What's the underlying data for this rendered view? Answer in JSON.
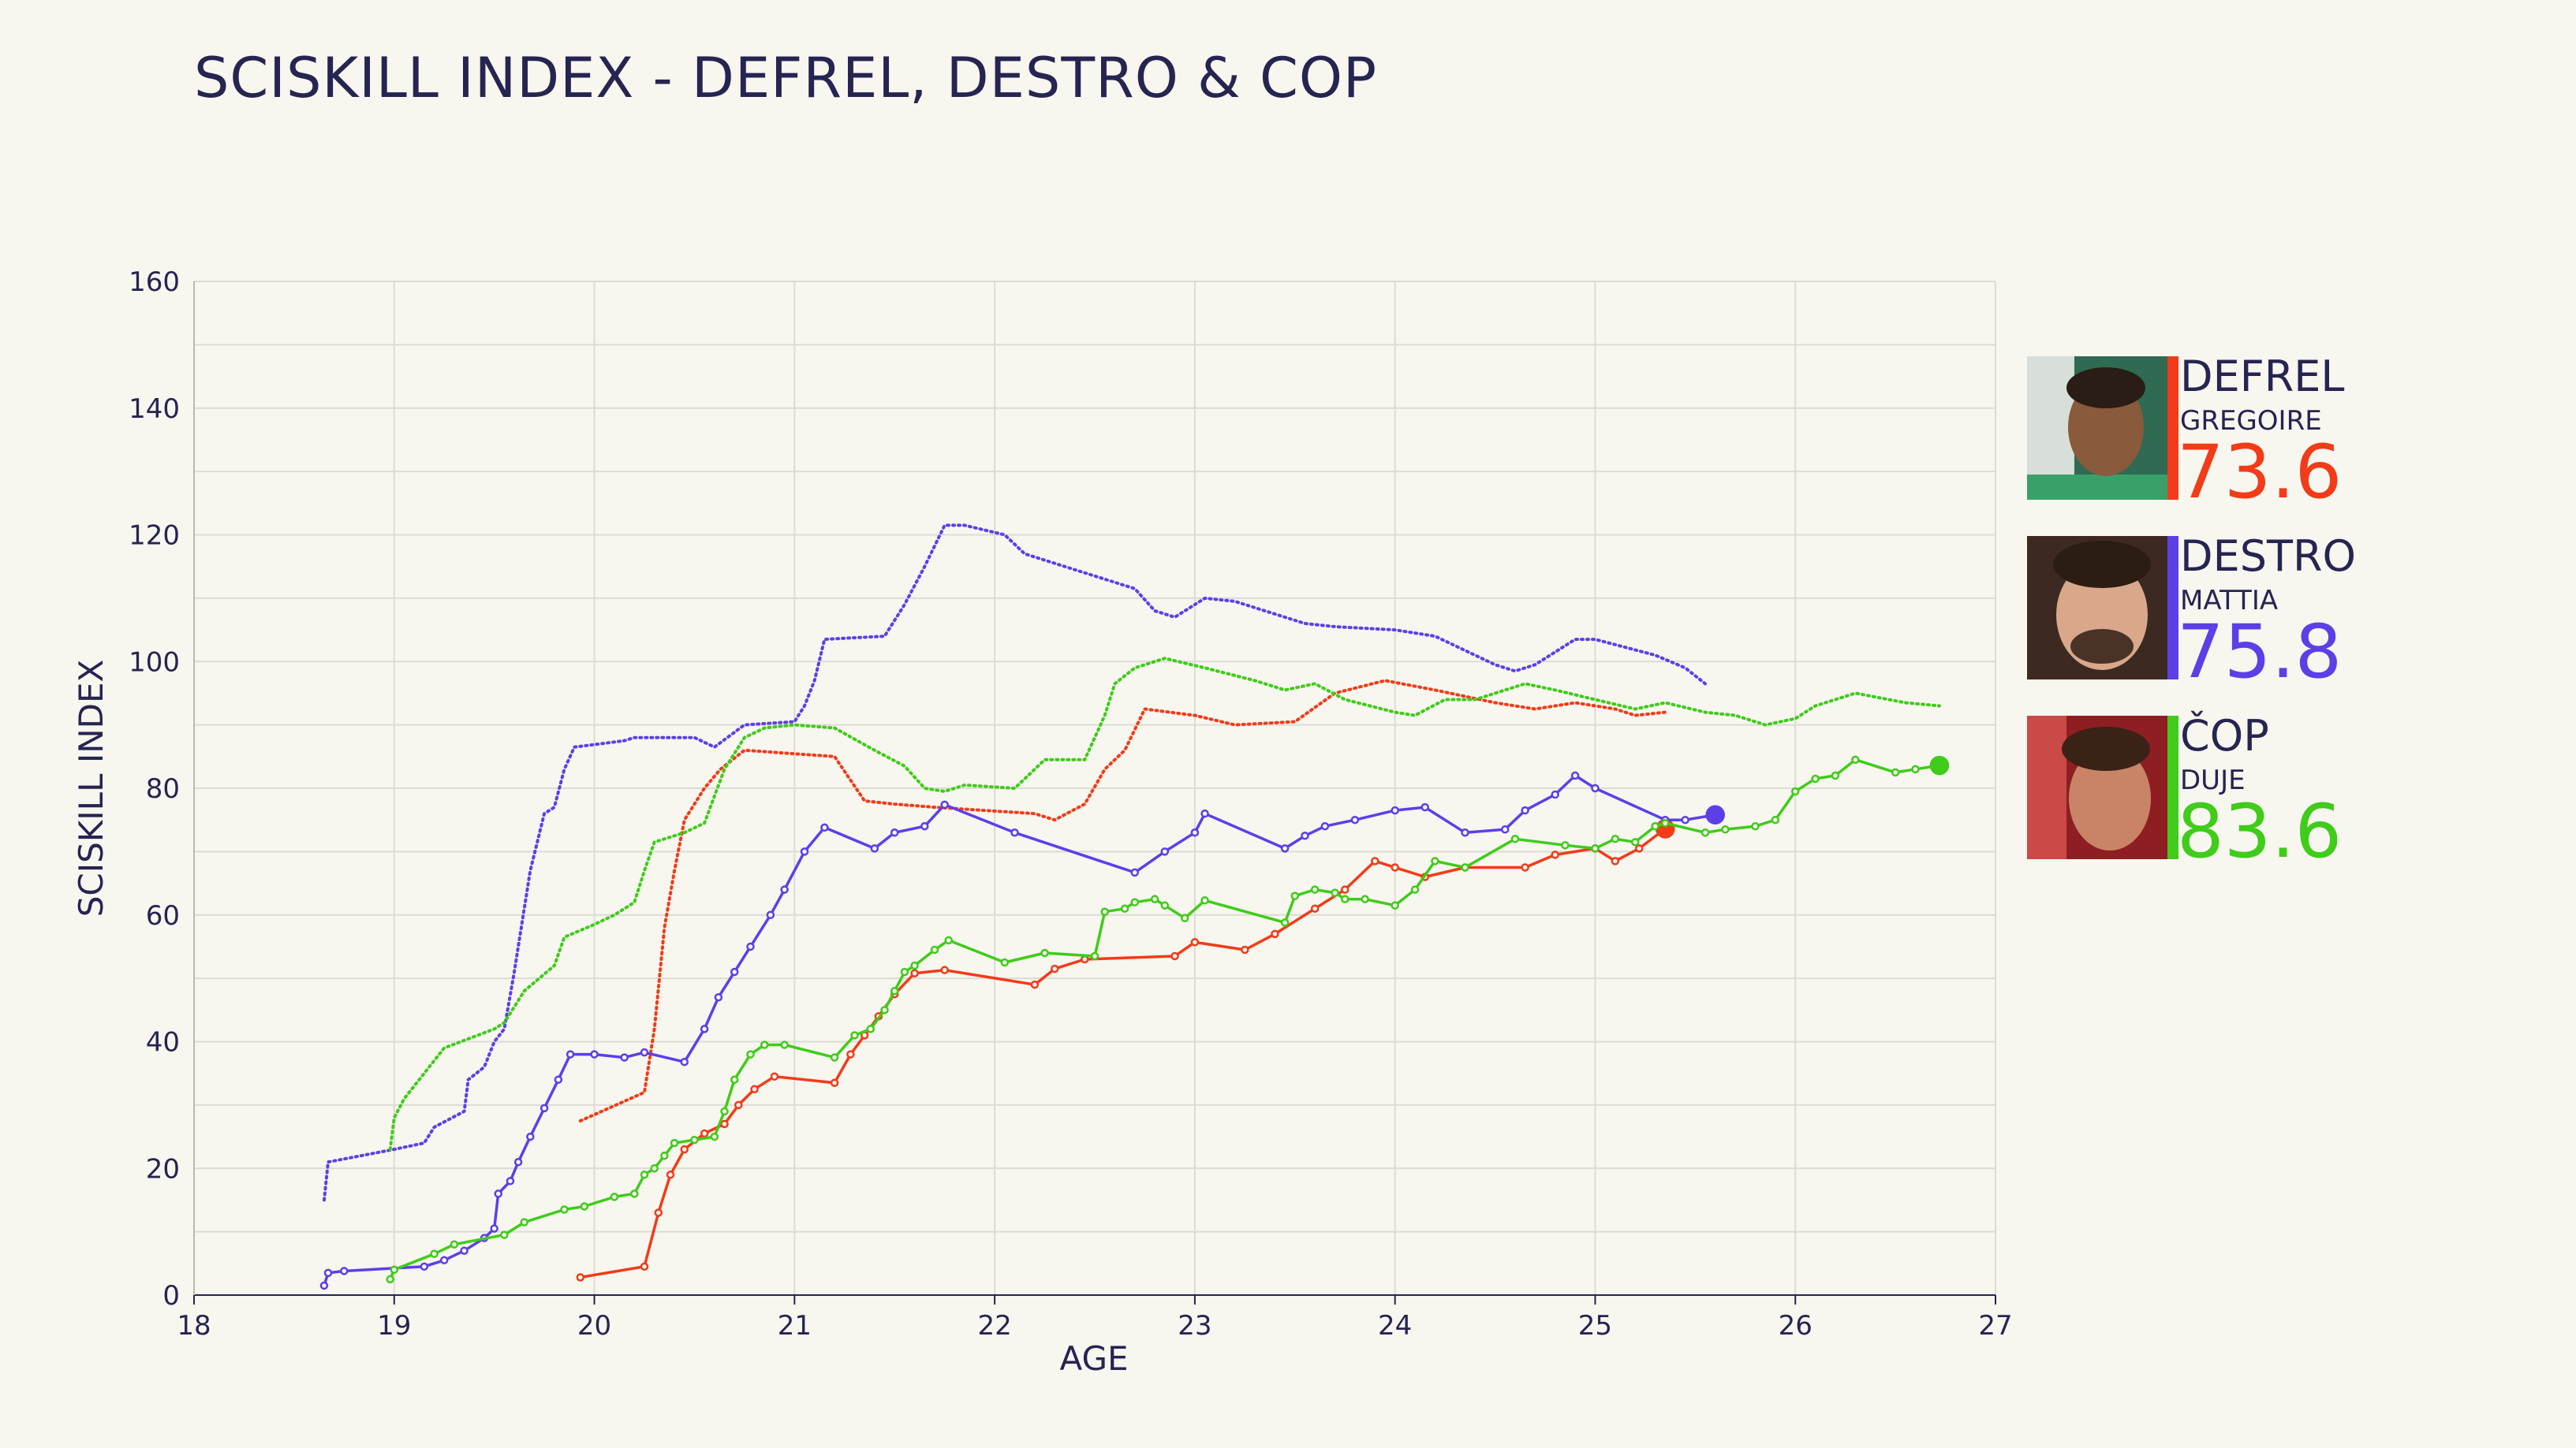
{
  "title": "SCISKILL INDEX - DEFREL, DESTRO & COP",
  "chart_data": {
    "type": "line",
    "title": "SCISKILL INDEX - DEFREL, DESTRO & COP",
    "xlabel": "AGE",
    "ylabel": "SCISKILL INDEX",
    "xlim": [
      18,
      27
    ],
    "ylim": [
      0,
      160
    ],
    "xticks": [
      18,
      19,
      20,
      21,
      22,
      23,
      24,
      25,
      26,
      27
    ],
    "yticks": [
      0,
      20,
      40,
      60,
      80,
      100,
      120,
      140,
      160
    ],
    "grid": true,
    "legend": "right",
    "series": [
      {
        "key": "defrel",
        "color": "#f23b18",
        "style": "solid",
        "points": [
          [
            19.93,
            2.8
          ],
          [
            20.25,
            4.5
          ],
          [
            20.32,
            13
          ],
          [
            20.38,
            19
          ],
          [
            20.45,
            23
          ],
          [
            20.55,
            25.5
          ],
          [
            20.65,
            27
          ],
          [
            20.72,
            30
          ],
          [
            20.8,
            32.5
          ],
          [
            20.9,
            34.5
          ],
          [
            21.2,
            33.5
          ],
          [
            21.28,
            38
          ],
          [
            21.35,
            41
          ],
          [
            21.42,
            44
          ],
          [
            21.5,
            47.5
          ],
          [
            21.6,
            50.8
          ],
          [
            21.75,
            51.3
          ],
          [
            22.2,
            49
          ],
          [
            22.3,
            51.5
          ],
          [
            22.45,
            53
          ],
          [
            22.9,
            53.5
          ],
          [
            23.0,
            55.7
          ],
          [
            23.25,
            54.5
          ],
          [
            23.4,
            57
          ],
          [
            23.6,
            61
          ],
          [
            23.75,
            64
          ],
          [
            23.9,
            68.5
          ],
          [
            24.0,
            67.5
          ],
          [
            24.15,
            66
          ],
          [
            24.35,
            67.5
          ],
          [
            24.65,
            67.5
          ],
          [
            24.8,
            69.5
          ],
          [
            25.0,
            70.5
          ],
          [
            25.1,
            68.5
          ],
          [
            25.22,
            70.5
          ],
          [
            25.35,
            73.6
          ]
        ]
      },
      {
        "key": "defrel_dotted",
        "color": "#f23b18",
        "style": "dotted",
        "points": [
          [
            19.93,
            27.5
          ],
          [
            20.25,
            32
          ],
          [
            20.3,
            42
          ],
          [
            20.35,
            58
          ],
          [
            20.4,
            67
          ],
          [
            20.45,
            75
          ],
          [
            20.55,
            80
          ],
          [
            20.63,
            83
          ],
          [
            20.75,
            86
          ],
          [
            21.2,
            85
          ],
          [
            21.35,
            78
          ],
          [
            21.5,
            77.5
          ],
          [
            21.7,
            77
          ],
          [
            22.2,
            76
          ],
          [
            22.3,
            75
          ],
          [
            22.45,
            77.5
          ],
          [
            22.55,
            83
          ],
          [
            22.65,
            86
          ],
          [
            22.75,
            92.5
          ],
          [
            23.0,
            91.5
          ],
          [
            23.2,
            90
          ],
          [
            23.5,
            90.5
          ],
          [
            23.7,
            95
          ],
          [
            23.95,
            97
          ],
          [
            24.2,
            95.5
          ],
          [
            24.5,
            93.5
          ],
          [
            24.7,
            92.5
          ],
          [
            24.9,
            93.5
          ],
          [
            25.1,
            92.5
          ],
          [
            25.2,
            91.5
          ],
          [
            25.35,
            92
          ]
        ]
      },
      {
        "key": "destro",
        "color": "#5d3fe8",
        "style": "solid",
        "points": [
          [
            18.65,
            1.5
          ],
          [
            18.67,
            3.5
          ],
          [
            18.75,
            3.8
          ],
          [
            19.15,
            4.5
          ],
          [
            19.25,
            5.5
          ],
          [
            19.35,
            7
          ],
          [
            19.45,
            9
          ],
          [
            19.5,
            10.5
          ],
          [
            19.52,
            16
          ],
          [
            19.58,
            18
          ],
          [
            19.62,
            21
          ],
          [
            19.68,
            25
          ],
          [
            19.75,
            29.5
          ],
          [
            19.82,
            34
          ],
          [
            19.88,
            38
          ],
          [
            20.0,
            38
          ],
          [
            20.15,
            37.5
          ],
          [
            20.25,
            38.3
          ],
          [
            20.45,
            36.8
          ],
          [
            20.55,
            42
          ],
          [
            20.62,
            47
          ],
          [
            20.7,
            51
          ],
          [
            20.78,
            55
          ],
          [
            20.88,
            60
          ],
          [
            20.95,
            64
          ],
          [
            21.05,
            70
          ],
          [
            21.15,
            73.8
          ],
          [
            21.4,
            70.5
          ],
          [
            21.5,
            73
          ],
          [
            21.65,
            74
          ],
          [
            21.75,
            77.4
          ],
          [
            22.1,
            73
          ],
          [
            22.7,
            66.7
          ],
          [
            22.85,
            70
          ],
          [
            23.0,
            73
          ],
          [
            23.05,
            76
          ],
          [
            23.45,
            70.5
          ],
          [
            23.55,
            72.5
          ],
          [
            23.65,
            74
          ],
          [
            23.8,
            75
          ],
          [
            24.0,
            76.5
          ],
          [
            24.15,
            77
          ],
          [
            24.35,
            73
          ],
          [
            24.55,
            73.5
          ],
          [
            24.65,
            76.5
          ],
          [
            24.8,
            79
          ],
          [
            24.9,
            82
          ],
          [
            25.0,
            80
          ],
          [
            25.35,
            75
          ],
          [
            25.45,
            75
          ],
          [
            25.6,
            75.8
          ]
        ]
      },
      {
        "key": "destro_dotted",
        "color": "#5d3fe8",
        "style": "dotted",
        "points": [
          [
            18.65,
            15
          ],
          [
            18.67,
            21
          ],
          [
            19.0,
            23
          ],
          [
            19.15,
            24
          ],
          [
            19.2,
            26.5
          ],
          [
            19.35,
            29
          ],
          [
            19.37,
            34
          ],
          [
            19.45,
            36
          ],
          [
            19.5,
            40
          ],
          [
            19.55,
            42
          ],
          [
            19.6,
            51
          ],
          [
            19.68,
            67
          ],
          [
            19.75,
            76
          ],
          [
            19.8,
            77
          ],
          [
            19.85,
            83
          ],
          [
            19.9,
            86.5
          ],
          [
            20.15,
            87.5
          ],
          [
            20.2,
            88
          ],
          [
            20.5,
            88
          ],
          [
            20.6,
            86.5
          ],
          [
            20.75,
            90
          ],
          [
            21.0,
            90.5
          ],
          [
            21.05,
            93
          ],
          [
            21.1,
            97
          ],
          [
            21.15,
            103.5
          ],
          [
            21.45,
            104
          ],
          [
            21.55,
            109
          ],
          [
            21.65,
            115
          ],
          [
            21.75,
            121.5
          ],
          [
            21.85,
            121.5
          ],
          [
            22.05,
            120
          ],
          [
            22.15,
            117
          ],
          [
            22.35,
            115
          ],
          [
            22.7,
            111.5
          ],
          [
            22.8,
            108
          ],
          [
            22.9,
            107
          ],
          [
            23.05,
            110
          ],
          [
            23.2,
            109.5
          ],
          [
            23.55,
            106
          ],
          [
            23.7,
            105.5
          ],
          [
            24.0,
            105
          ],
          [
            24.2,
            104
          ],
          [
            24.5,
            99.5
          ],
          [
            24.6,
            98.5
          ],
          [
            24.7,
            99.5
          ],
          [
            24.9,
            103.5
          ],
          [
            25.0,
            103.5
          ],
          [
            25.3,
            101
          ],
          [
            25.45,
            99
          ],
          [
            25.55,
            96.5
          ]
        ]
      },
      {
        "key": "cop",
        "color": "#3fcc1a",
        "style": "solid",
        "points": [
          [
            18.98,
            2.5
          ],
          [
            19.0,
            4
          ],
          [
            19.2,
            6.5
          ],
          [
            19.3,
            8
          ],
          [
            19.55,
            9.5
          ],
          [
            19.65,
            11.5
          ],
          [
            19.85,
            13.5
          ],
          [
            19.95,
            14
          ],
          [
            20.1,
            15.5
          ],
          [
            20.2,
            16
          ],
          [
            20.25,
            19
          ],
          [
            20.3,
            20
          ],
          [
            20.35,
            22
          ],
          [
            20.4,
            24
          ],
          [
            20.5,
            24.5
          ],
          [
            20.6,
            25
          ],
          [
            20.65,
            29
          ],
          [
            20.7,
            34
          ],
          [
            20.78,
            38
          ],
          [
            20.85,
            39.5
          ],
          [
            20.95,
            39.5
          ],
          [
            21.2,
            37.5
          ],
          [
            21.3,
            41
          ],
          [
            21.38,
            42
          ],
          [
            21.45,
            45
          ],
          [
            21.5,
            48
          ],
          [
            21.55,
            51
          ],
          [
            21.6,
            52
          ],
          [
            21.7,
            54.5
          ],
          [
            21.77,
            56
          ],
          [
            22.05,
            52.5
          ],
          [
            22.25,
            54
          ],
          [
            22.5,
            53.5
          ],
          [
            22.55,
            60.5
          ],
          [
            22.65,
            61
          ],
          [
            22.7,
            62
          ],
          [
            22.8,
            62.5
          ],
          [
            22.85,
            61.5
          ],
          [
            22.95,
            59.5
          ],
          [
            23.05,
            62.3
          ],
          [
            23.45,
            58.8
          ],
          [
            23.5,
            63
          ],
          [
            23.6,
            64
          ],
          [
            23.7,
            63.5
          ],
          [
            23.75,
            62.5
          ],
          [
            23.85,
            62.5
          ],
          [
            24.0,
            61.5
          ],
          [
            24.1,
            64
          ],
          [
            24.2,
            68.5
          ],
          [
            24.35,
            67.5
          ],
          [
            24.6,
            72
          ],
          [
            24.85,
            71
          ],
          [
            25.0,
            70.5
          ],
          [
            25.1,
            72
          ],
          [
            25.2,
            71.5
          ],
          [
            25.3,
            74
          ],
          [
            25.35,
            74.5
          ],
          [
            25.55,
            73
          ],
          [
            25.65,
            73.5
          ],
          [
            25.8,
            74
          ],
          [
            25.9,
            75
          ],
          [
            26.0,
            79.5
          ],
          [
            26.1,
            81.5
          ],
          [
            26.2,
            82
          ],
          [
            26.3,
            84.5
          ],
          [
            26.5,
            82.5
          ],
          [
            26.6,
            83
          ],
          [
            26.72,
            83.6
          ]
        ]
      },
      {
        "key": "cop_dotted",
        "color": "#3fcc1a",
        "style": "dotted",
        "points": [
          [
            18.98,
            23
          ],
          [
            19.0,
            28
          ],
          [
            19.05,
            31
          ],
          [
            19.15,
            35
          ],
          [
            19.25,
            39
          ],
          [
            19.5,
            42
          ],
          [
            19.55,
            43
          ],
          [
            19.65,
            48
          ],
          [
            19.8,
            52
          ],
          [
            19.85,
            56.5
          ],
          [
            20.0,
            58.5
          ],
          [
            20.1,
            60
          ],
          [
            20.2,
            62
          ],
          [
            20.25,
            67
          ],
          [
            20.3,
            71.5
          ],
          [
            20.45,
            73
          ],
          [
            20.55,
            74.5
          ],
          [
            20.65,
            83
          ],
          [
            20.75,
            88
          ],
          [
            20.85,
            89.5
          ],
          [
            21.0,
            90
          ],
          [
            21.2,
            89.5
          ],
          [
            21.4,
            86
          ],
          [
            21.55,
            83.5
          ],
          [
            21.65,
            80
          ],
          [
            21.75,
            79.5
          ],
          [
            21.85,
            80.5
          ],
          [
            22.1,
            80
          ],
          [
            22.25,
            84.5
          ],
          [
            22.45,
            84.5
          ],
          [
            22.55,
            91.5
          ],
          [
            22.6,
            96.5
          ],
          [
            22.7,
            99
          ],
          [
            22.85,
            100.5
          ],
          [
            23.05,
            99
          ],
          [
            23.3,
            97
          ],
          [
            23.45,
            95.5
          ],
          [
            23.6,
            96.5
          ],
          [
            23.75,
            94
          ],
          [
            24.0,
            92
          ],
          [
            24.1,
            91.5
          ],
          [
            24.25,
            94
          ],
          [
            24.4,
            94
          ],
          [
            24.65,
            96.5
          ],
          [
            24.8,
            95.5
          ],
          [
            25.0,
            94
          ],
          [
            25.2,
            92.5
          ],
          [
            25.35,
            93.5
          ],
          [
            25.55,
            92
          ],
          [
            25.7,
            91.5
          ],
          [
            25.85,
            90
          ],
          [
            26.0,
            91
          ],
          [
            26.1,
            93
          ],
          [
            26.3,
            95
          ],
          [
            26.55,
            93.5
          ],
          [
            26.72,
            93
          ]
        ]
      }
    ],
    "legend_entries": [
      {
        "surname": "DEFREL",
        "firstname": "GREGOIRE",
        "value": "73.6",
        "color": "#f23b18"
      },
      {
        "surname": "DESTRO",
        "firstname": "MATTIA",
        "value": "75.8",
        "color": "#5d3fe8"
      },
      {
        "surname": "ČOP",
        "firstname": "DUJE",
        "value": "83.6",
        "color": "#3fcc1a"
      }
    ]
  }
}
